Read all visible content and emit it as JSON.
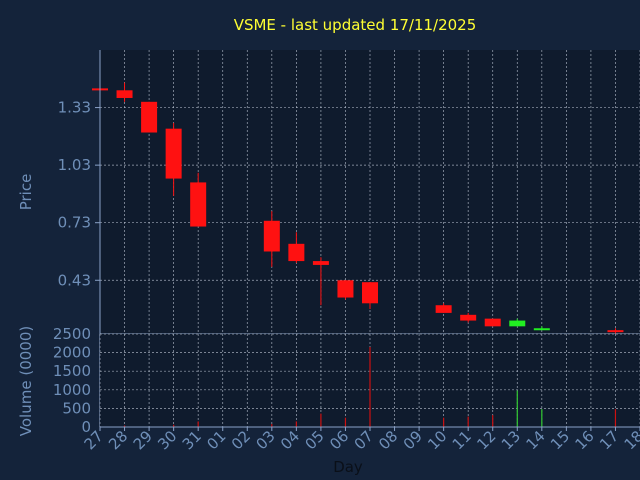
{
  "title": "VSME - last updated 17/11/2025",
  "colors": {
    "background": "#14233a",
    "plot_background": "#0f1b2d",
    "axis": "#8aa2c8",
    "grid": "#cfd8e6",
    "title": "#ffff33",
    "up": "#22ee22",
    "down": "#ff1111",
    "volume_down": "#cc1111",
    "volume_up": "#33cc33",
    "tick_text": "#6f8fb8"
  },
  "chart_data": [
    {
      "type": "candlestick",
      "title": "VSME - last updated 17/11/2025",
      "ylabel": "Price",
      "xlabel": "",
      "ylim": [
        0.15,
        1.63
      ],
      "yticks": [
        0.43,
        0.73,
        1.03,
        1.33
      ],
      "grid": true,
      "categories": [
        "27",
        "28",
        "29",
        "30",
        "31",
        "01",
        "02",
        "03",
        "04",
        "05",
        "06",
        "07",
        "08",
        "09",
        "10",
        "11",
        "12",
        "13",
        "14",
        "15",
        "16",
        "17",
        "18"
      ],
      "candles": [
        {
          "x": "27",
          "open": 1.43,
          "high": 1.43,
          "low": 1.42,
          "close": 1.42
        },
        {
          "x": "28",
          "open": 1.42,
          "high": 1.46,
          "low": 1.36,
          "close": 1.38
        },
        {
          "x": "29",
          "open": 1.36,
          "high": 1.36,
          "low": 1.2,
          "close": 1.2
        },
        {
          "x": "30",
          "open": 1.22,
          "high": 1.25,
          "low": 0.87,
          "close": 0.96
        },
        {
          "x": "31",
          "open": 0.94,
          "high": 0.99,
          "low": 0.71,
          "close": 0.71
        },
        {
          "x": "03",
          "open": 0.74,
          "high": 0.79,
          "low": 0.5,
          "close": 0.58
        },
        {
          "x": "04",
          "open": 0.62,
          "high": 0.68,
          "low": 0.52,
          "close": 0.53
        },
        {
          "x": "05",
          "open": 0.53,
          "high": 0.55,
          "low": 0.3,
          "close": 0.51
        },
        {
          "x": "06",
          "open": 0.43,
          "high": 0.43,
          "low": 0.33,
          "close": 0.34
        },
        {
          "x": "07",
          "open": 0.42,
          "high": 0.42,
          "low": 0.28,
          "close": 0.31
        },
        {
          "x": "10",
          "open": 0.3,
          "high": 0.31,
          "low": 0.26,
          "close": 0.26
        },
        {
          "x": "11",
          "open": 0.25,
          "high": 0.26,
          "low": 0.21,
          "close": 0.22
        },
        {
          "x": "12",
          "open": 0.23,
          "high": 0.23,
          "low": 0.19,
          "close": 0.19
        },
        {
          "x": "13",
          "open": 0.19,
          "high": 0.23,
          "low": 0.19,
          "close": 0.22
        },
        {
          "x": "14",
          "open": 0.18,
          "high": 0.19,
          "low": 0.17,
          "close": 0.18
        },
        {
          "x": "17",
          "open": 0.17,
          "high": 0.18,
          "low": 0.15,
          "close": 0.16
        }
      ]
    },
    {
      "type": "bar",
      "ylabel": "Volume (0000)",
      "xlabel": "Day",
      "ylim": [
        0,
        2500
      ],
      "yticks": [
        0,
        500,
        1000,
        1500,
        2000,
        2500
      ],
      "grid": true,
      "categories": [
        "27",
        "28",
        "29",
        "30",
        "31",
        "01",
        "02",
        "03",
        "04",
        "05",
        "06",
        "07",
        "08",
        "09",
        "10",
        "11",
        "12",
        "13",
        "14",
        "15",
        "16",
        "17",
        "18"
      ],
      "values": [
        {
          "x": "28",
          "value": 40,
          "dir": "down"
        },
        {
          "x": "30",
          "value": 60,
          "dir": "down"
        },
        {
          "x": "31",
          "value": 150,
          "dir": "down"
        },
        {
          "x": "03",
          "value": 80,
          "dir": "down"
        },
        {
          "x": "04",
          "value": 150,
          "dir": "down"
        },
        {
          "x": "05",
          "value": 360,
          "dir": "down"
        },
        {
          "x": "06",
          "value": 250,
          "dir": "down"
        },
        {
          "x": "07",
          "value": 2150,
          "dir": "down"
        },
        {
          "x": "10",
          "value": 250,
          "dir": "down"
        },
        {
          "x": "11",
          "value": 280,
          "dir": "down"
        },
        {
          "x": "12",
          "value": 320,
          "dir": "down"
        },
        {
          "x": "13",
          "value": 980,
          "dir": "up"
        },
        {
          "x": "14",
          "value": 480,
          "dir": "up"
        },
        {
          "x": "17",
          "value": 480,
          "dir": "down"
        }
      ]
    }
  ]
}
